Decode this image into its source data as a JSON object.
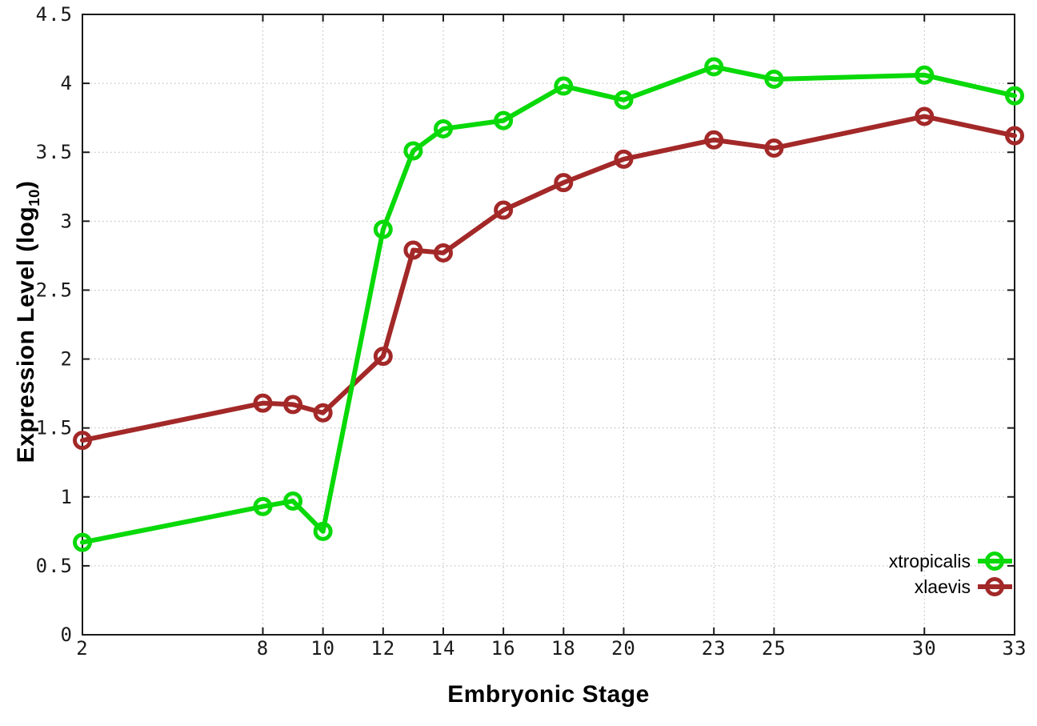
{
  "figure": {
    "background": "#ffffff"
  },
  "colors": {
    "axis": "#1a1a1a",
    "grid": "#b5b5b5",
    "tick_text": "#1a1a1a",
    "title_text": "#000000"
  },
  "chart_data": {
    "type": "line",
    "title": "",
    "xlabel": "Embryonic Stage",
    "ylabel": "Expression Level (log10)",
    "ylabel_parts": {
      "main": "Expression Level (log",
      "sub": "10",
      "close": ")"
    },
    "xlim": [
      2,
      33
    ],
    "ylim": [
      0,
      4.5
    ],
    "grid": true,
    "legend_position": "inside-bottom-right",
    "x_ticks": [
      2,
      8,
      10,
      12,
      14,
      16,
      18,
      20,
      23,
      25,
      30,
      33
    ],
    "x_tick_labels": [
      "2",
      "8",
      "10",
      "12",
      "14",
      "16",
      "18",
      "20",
      "23",
      "25",
      "30",
      "33"
    ],
    "y_ticks": [
      0,
      0.5,
      1,
      1.5,
      2,
      2.5,
      3,
      3.5,
      4,
      4.5
    ],
    "y_tick_labels": [
      "0",
      "0.5",
      "1",
      "1.5",
      "2",
      "2.5",
      "3",
      "3.5",
      "4",
      "4.5"
    ],
    "x": [
      2,
      8,
      9,
      10,
      12,
      13,
      14,
      16,
      18,
      20,
      23,
      25,
      30,
      33
    ],
    "series": [
      {
        "name": "xtropicalis",
        "color": "#09d909",
        "marker": "open-circle",
        "values": [
          0.67,
          0.93,
          0.97,
          0.75,
          2.94,
          3.51,
          3.67,
          3.73,
          3.98,
          3.88,
          4.12,
          4.03,
          4.06,
          3.91
        ]
      },
      {
        "name": "xlaevis",
        "color": "#a32828",
        "marker": "open-circle",
        "values": [
          1.41,
          1.68,
          1.67,
          1.61,
          2.02,
          2.79,
          2.77,
          3.08,
          3.28,
          3.45,
          3.59,
          3.53,
          3.76,
          3.62
        ]
      }
    ]
  }
}
